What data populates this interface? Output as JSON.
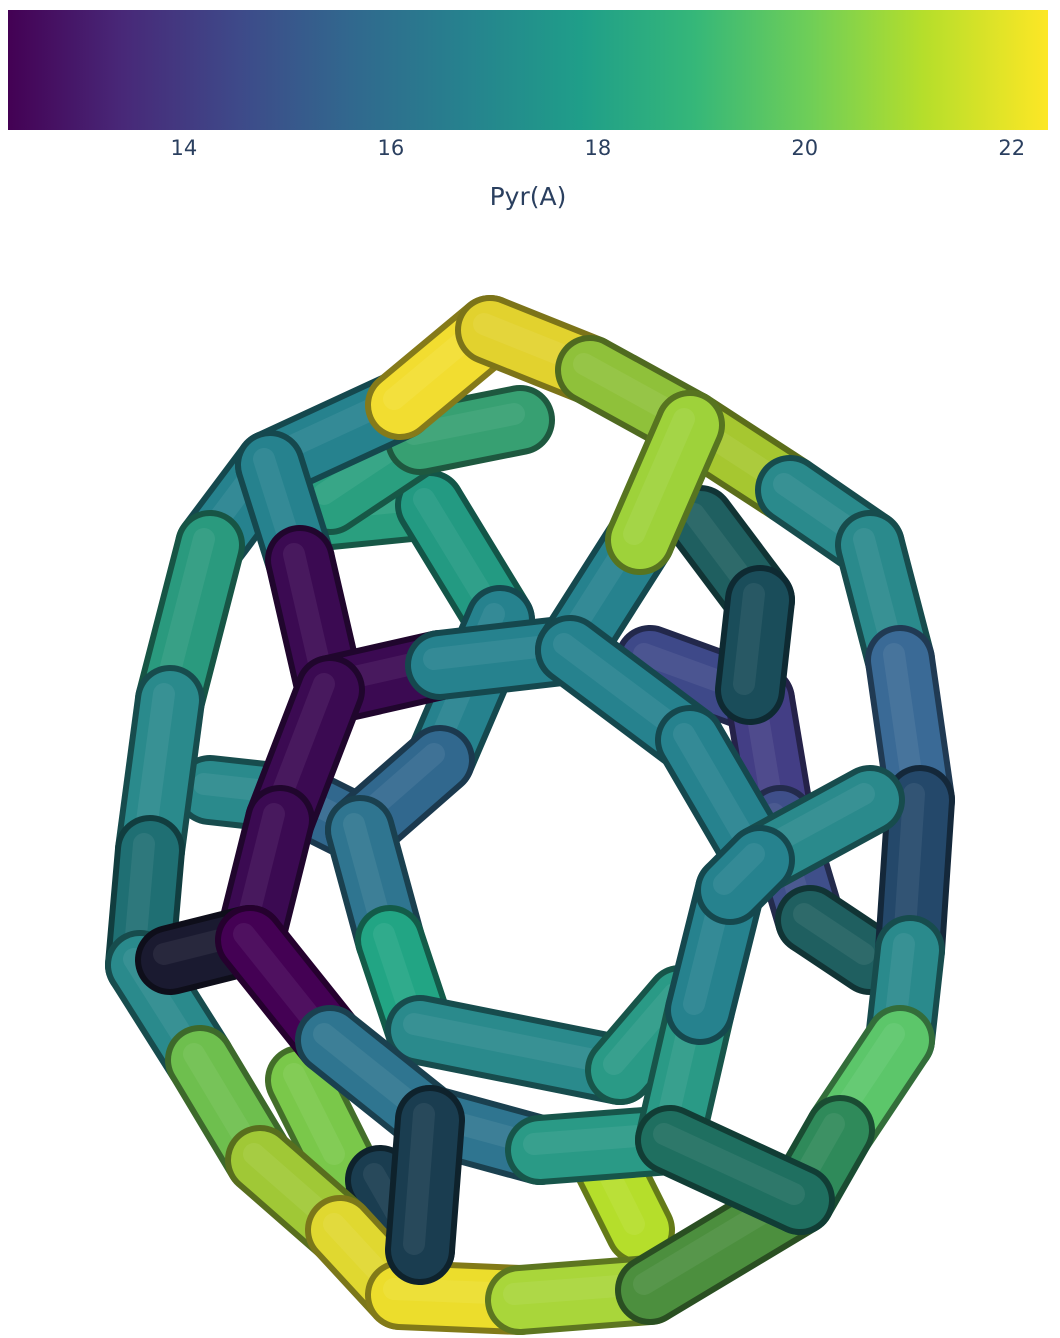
{
  "chart_data": {
    "type": "3d-tube-graph",
    "colorscale": "Viridis",
    "colorbar": {
      "title": "Pyr(A)",
      "orientation": "horizontal",
      "range": [
        12.3,
        22.35
      ],
      "tickvals": [
        14,
        16,
        18,
        20,
        22
      ],
      "ticktext": [
        "14",
        "16",
        "18",
        "20",
        "22"
      ]
    }
  }
}
